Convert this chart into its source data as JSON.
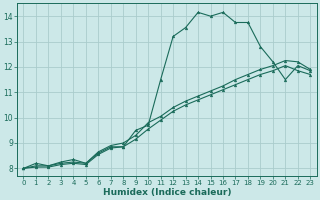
{
  "xlabel": "Humidex (Indice chaleur)",
  "bg_color": "#cce8e8",
  "line_color": "#1a6b5a",
  "grid_color": "#aacccc",
  "xlim": [
    -0.5,
    23.5
  ],
  "ylim": [
    7.7,
    14.5
  ],
  "xticks": [
    0,
    1,
    2,
    3,
    4,
    5,
    6,
    7,
    8,
    9,
    10,
    11,
    12,
    13,
    14,
    15,
    16,
    17,
    18,
    19,
    20,
    21,
    22,
    23
  ],
  "yticks": [
    8,
    9,
    10,
    11,
    12,
    13,
    14
  ],
  "lines": [
    {
      "x": [
        0,
        1,
        2,
        3,
        4,
        5,
        6,
        7,
        8,
        9,
        10,
        11,
        12,
        13,
        14,
        15,
        16,
        17,
        18,
        19,
        20,
        21,
        22,
        23
      ],
      "y": [
        8.0,
        8.2,
        8.1,
        8.25,
        8.35,
        8.2,
        8.6,
        8.85,
        8.85,
        9.5,
        9.7,
        11.5,
        13.2,
        13.55,
        14.15,
        14.0,
        14.15,
        13.75,
        13.75,
        12.8,
        12.2,
        11.5,
        12.05,
        11.85
      ]
    },
    {
      "x": [
        0,
        1,
        2,
        3,
        4,
        5,
        6,
        7,
        8,
        9,
        10,
        11,
        12,
        13,
        14,
        15,
        16,
        17,
        18,
        19,
        20,
        21,
        22,
        23
      ],
      "y": [
        8.0,
        8.1,
        8.1,
        8.2,
        8.25,
        8.2,
        8.65,
        8.9,
        9.0,
        9.3,
        9.8,
        10.05,
        10.4,
        10.65,
        10.85,
        11.05,
        11.25,
        11.5,
        11.7,
        11.9,
        12.05,
        12.25,
        12.2,
        11.9
      ]
    },
    {
      "x": [
        0,
        1,
        2,
        3,
        4,
        5,
        6,
        7,
        8,
        9,
        10,
        11,
        12,
        13,
        14,
        15,
        16,
        17,
        18,
        19,
        20,
        21,
        22,
        23
      ],
      "y": [
        8.0,
        8.05,
        8.05,
        8.15,
        8.2,
        8.15,
        8.55,
        8.8,
        8.85,
        9.15,
        9.55,
        9.9,
        10.25,
        10.5,
        10.7,
        10.9,
        11.1,
        11.3,
        11.5,
        11.7,
        11.85,
        12.05,
        11.85,
        11.7
      ]
    }
  ]
}
